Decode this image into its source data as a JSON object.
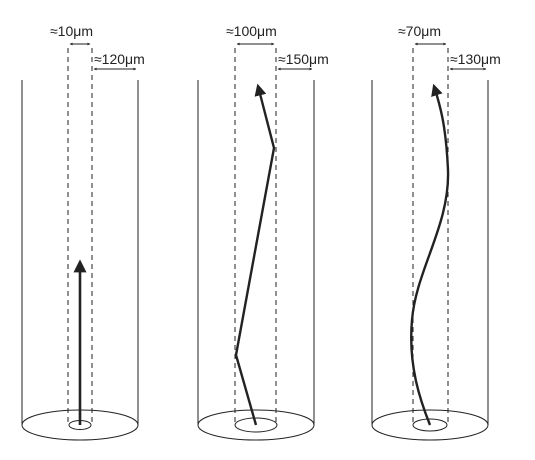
{
  "panels": [
    {
      "core_label": "≈10μm",
      "cladding_label": "≈120μm"
    },
    {
      "core_label": "≈100μm",
      "cladding_label": "≈150μm"
    },
    {
      "core_label": "≈70μm",
      "cladding_label": "≈130μm"
    }
  ],
  "colors": {
    "ink": "#222222",
    "background": "#ffffff"
  }
}
